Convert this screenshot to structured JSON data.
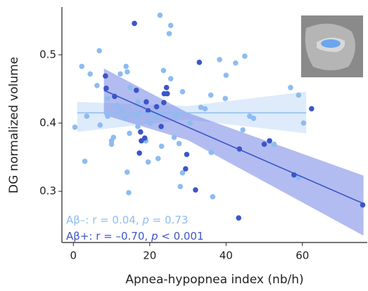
{
  "chart_data": {
    "type": "scatter",
    "x_label": "Apnea-hypopnea index (nb/h)",
    "y_label": "DG normalized volume",
    "xlim": [
      -3,
      77
    ],
    "xticks": [
      0,
      20,
      40,
      60
    ],
    "ylim": [
      0.225,
      0.57
    ],
    "yticks": [
      0.3,
      0.4,
      0.5
    ],
    "series": [
      {
        "color": "#8dbcf0",
        "band_color": "#cfe3f8",
        "annotation": [
          "Aβ–: r = 0.04, ",
          "p",
          " = 0.73"
        ],
        "x": [
          0.4,
          2.2,
          4.4,
          6.8,
          3.5,
          3,
          6.2,
          7,
          9,
          9,
          10,
          10,
          10.5,
          11.4,
          12.3,
          12.7,
          13.8,
          14.1,
          13.4,
          14.1,
          14.5,
          14.9,
          14.7,
          16.9,
          16.9,
          16.9,
          19,
          19.6,
          20.2,
          21.7,
          22.7,
          23.6,
          23.1,
          22.2,
          25.5,
          25.1,
          25.5,
          26.4,
          27,
          27.7,
          28,
          28.6,
          28.6,
          30.6,
          33.4,
          34.5,
          36.5,
          36.1,
          38.3,
          40,
          39.8,
          42.5,
          44.9,
          44.4,
          46.2,
          47.2,
          52.6,
          56.9,
          59,
          60.3,
          59,
          36
        ],
        "values": [
          0.394,
          0.483,
          0.472,
          0.506,
          0.41,
          0.344,
          0.455,
          0.397,
          0.436,
          0.41,
          0.369,
          0.374,
          0.379,
          0.426,
          0.472,
          0.42,
          0.483,
          0.475,
          0.407,
          0.328,
          0.298,
          0.452,
          0.385,
          0.431,
          0.41,
          0.395,
          0.374,
          0.343,
          0.4,
          0.41,
          0.558,
          0.477,
          0.366,
          0.348,
          0.543,
          0.531,
          0.465,
          0.379,
          0.41,
          0.37,
          0.307,
          0.327,
          0.446,
          0.4,
          0.423,
          0.421,
          0.292,
          0.357,
          0.493,
          0.47,
          0.436,
          0.488,
          0.498,
          0.39,
          0.41,
          0.407,
          0.369,
          0.452,
          0.441,
          0.4,
          0.32,
          0.441
        ],
        "fit": {
          "x": [
            1,
            30,
            61
          ],
          "y": [
            0.415,
            0.415,
            0.415
          ],
          "lower": [
            0.387,
            0.405,
            0.385
          ],
          "upper": [
            0.431,
            0.425,
            0.446
          ]
        }
      },
      {
        "color": "#3c55c8",
        "band_color": "#7f8fe6",
        "annotation": [
          "Aβ+: r = –0.70, ",
          "p",
          " < 0.001"
        ],
        "x": [
          16,
          8.4,
          8.6,
          10.8,
          16.5,
          19.1,
          19.6,
          21.8,
          23.8,
          24.6,
          23.7,
          23,
          17.6,
          17.8,
          17.3,
          29.7,
          29.4,
          33,
          32,
          43.5,
          43.3,
          50,
          51.4,
          57.8,
          62.4,
          75.8,
          24.4,
          18.7
        ],
        "values": [
          0.546,
          0.469,
          0.451,
          0.439,
          0.448,
          0.431,
          0.418,
          0.424,
          0.443,
          0.443,
          0.43,
          0.395,
          0.387,
          0.374,
          0.356,
          0.354,
          0.333,
          0.489,
          0.302,
          0.362,
          0.261,
          0.369,
          0.374,
          0.324,
          0.421,
          0.28,
          0.452,
          0.378
        ],
        "fit": {
          "x": [
            8,
            30,
            76
          ],
          "y": [
            0.448,
            0.394,
            0.282
          ],
          "lower": [
            0.412,
            0.375,
            0.235
          ],
          "upper": [
            0.48,
            0.415,
            0.323
          ]
        }
      }
    ]
  }
}
